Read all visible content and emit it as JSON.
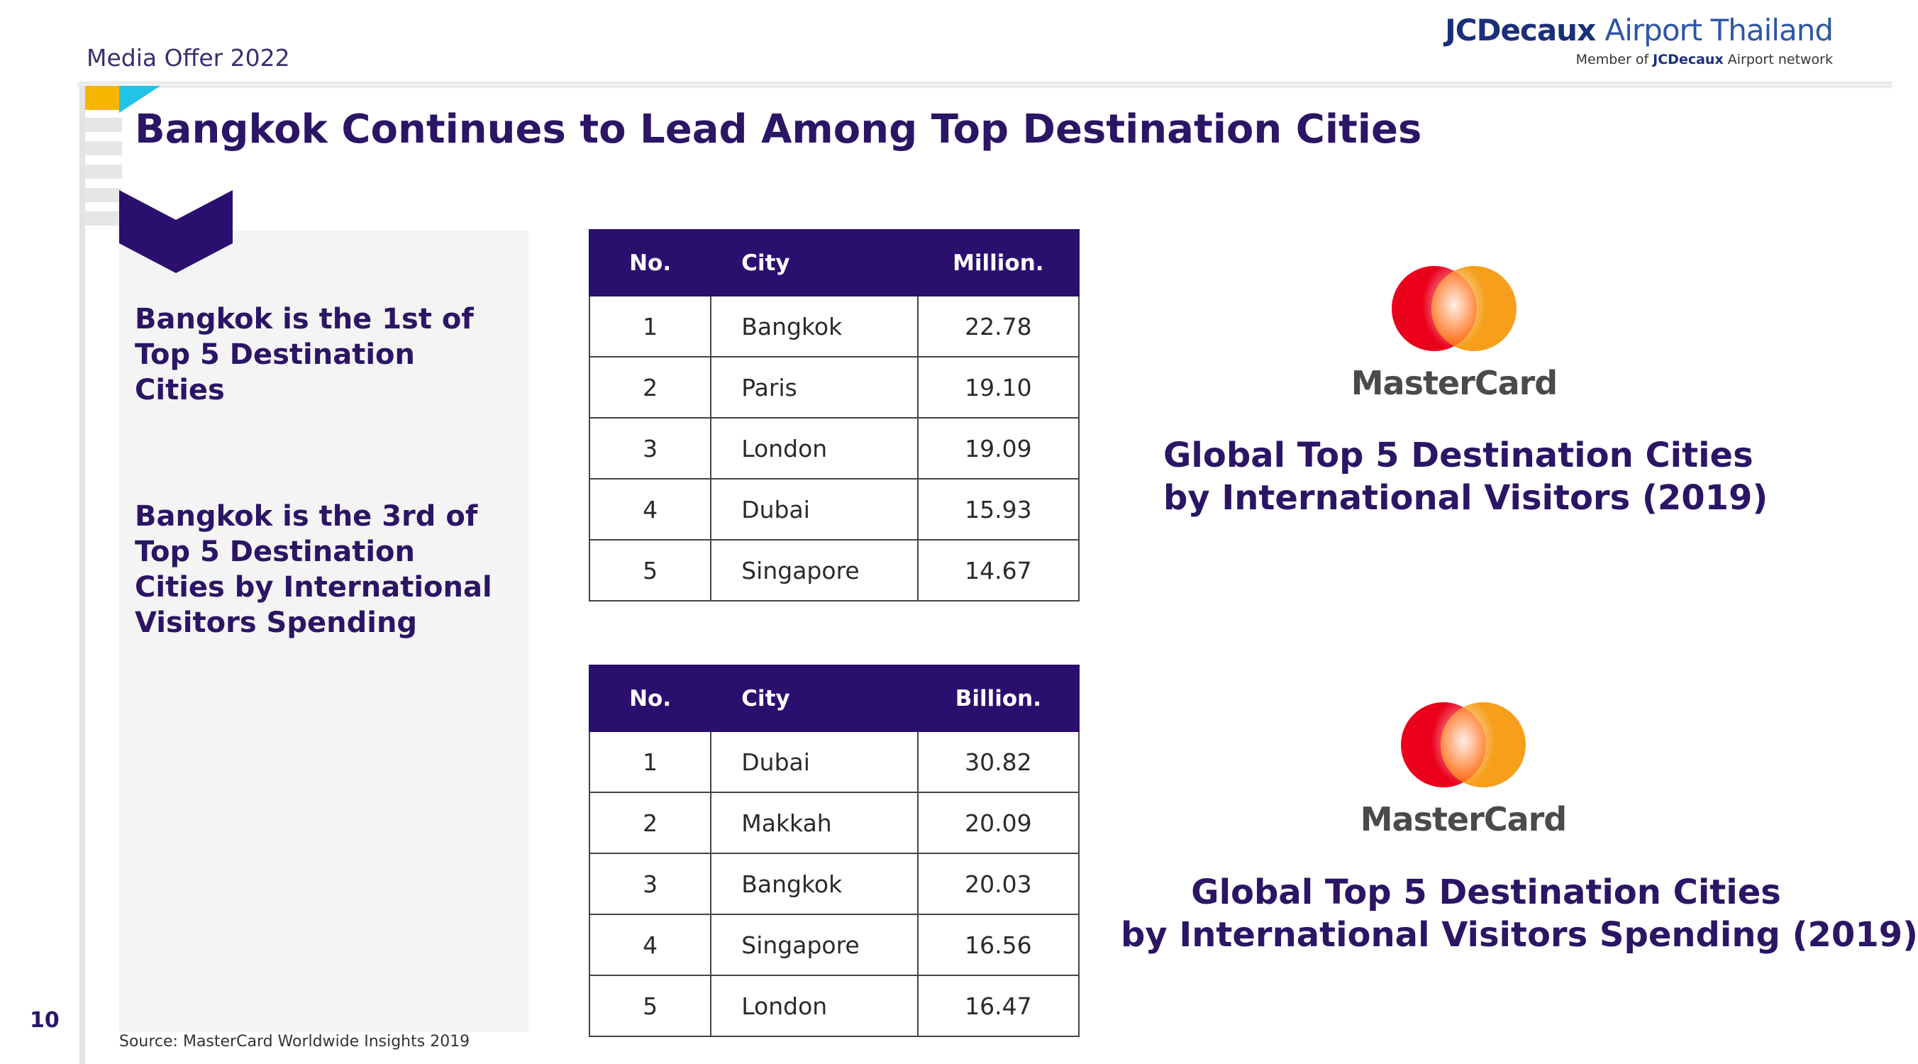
{
  "header": {
    "media_offer": "Media Offer 2022",
    "brand_bold": "JCDecaux",
    "brand_light": "Airport Thailand",
    "member_prefix": "Member of ",
    "member_brand": "JCDecaux",
    "member_suffix": " Airport network"
  },
  "title": "Bangkok Continues to Lead Among Top Destination Cities",
  "left_panel": {
    "text_1": "Bangkok is the 1st of Top 5 Destination Cities",
    "text_2": "Bangkok is the 3rd of Top 5 Destination Cities by International Visitors Spending"
  },
  "table_visitors": {
    "headers": [
      "No.",
      "City",
      "Million."
    ],
    "rows": [
      [
        "1",
        "Bangkok",
        "22.78"
      ],
      [
        "2",
        "Paris",
        "19.10"
      ],
      [
        "3",
        "London",
        "19.09"
      ],
      [
        "4",
        "Dubai",
        "15.93"
      ],
      [
        "5",
        "Singapore",
        "14.67"
      ]
    ]
  },
  "table_spending": {
    "headers": [
      "No.",
      "City",
      "Billion."
    ],
    "rows": [
      [
        "1",
        "Dubai",
        "30.82"
      ],
      [
        "2",
        "Makkah",
        "20.09"
      ],
      [
        "3",
        "Bangkok",
        "20.03"
      ],
      [
        "4",
        "Singapore",
        "16.56"
      ],
      [
        "5",
        "London",
        "16.47"
      ]
    ]
  },
  "right": {
    "logo_word_1": "MasterCard",
    "caption_1_line1": "Global Top 5 Destination Cities",
    "caption_1_line2": "by International Visitors (2019)",
    "logo_word_2": "MasterCard",
    "caption_2_line1": "Global Top 5 Destination Cities",
    "caption_2_line2": "by International Visitors Spending (2019)"
  },
  "footer": {
    "source": "Source: MasterCard Worldwide Insights 2019",
    "page_number": "10"
  },
  "colors": {
    "primary": "#2b1565",
    "table_header": "#2b0f6e",
    "accent_orange": "#f7b500",
    "accent_cyan": "#22c3e6",
    "mc_red": "#eb001b",
    "mc_orange": "#f79e1b"
  }
}
